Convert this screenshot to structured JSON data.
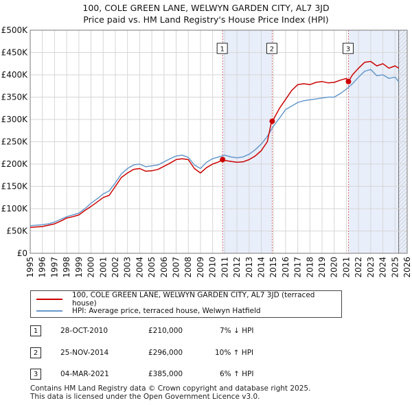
{
  "chart_data": {
    "type": "line",
    "title": "100, COLE GREEN LANE, WELWYN GARDEN CITY, AL7 3JD",
    "subtitle": "Price paid vs. HM Land Registry's House Price Index (HPI)",
    "xlabel": "",
    "ylabel": "",
    "xlim": [
      1995,
      2026
    ],
    "ylim": [
      0,
      500000
    ],
    "x_ticks": [
      "1995",
      "1996",
      "1997",
      "1998",
      "1999",
      "2000",
      "2001",
      "2002",
      "2003",
      "2004",
      "2005",
      "2006",
      "2007",
      "2008",
      "2009",
      "2010",
      "2011",
      "2012",
      "2013",
      "2014",
      "2015",
      "2016",
      "2017",
      "2018",
      "2019",
      "2020",
      "2021",
      "2022",
      "2023",
      "2024",
      "2025",
      "2026"
    ],
    "y_ticks": [
      {
        "value": 0,
        "label": "£0"
      },
      {
        "value": 50000,
        "label": "£50K"
      },
      {
        "value": 100000,
        "label": "£100K"
      },
      {
        "value": 150000,
        "label": "£150K"
      },
      {
        "value": 200000,
        "label": "£200K"
      },
      {
        "value": 250000,
        "label": "£250K"
      },
      {
        "value": 300000,
        "label": "£300K"
      },
      {
        "value": 350000,
        "label": "£350K"
      },
      {
        "value": 400000,
        "label": "£400K"
      },
      {
        "value": 450000,
        "label": "£450K"
      },
      {
        "value": 500000,
        "label": "£500K"
      }
    ],
    "grid": true,
    "series": [
      {
        "name": "100, COLE GREEN LANE, WELWYN GARDEN CITY, AL7 3JD (terraced house)",
        "color": "#cc0000",
        "x": [
          1995.0,
          1995.5,
          1996.0,
          1996.5,
          1997.0,
          1997.5,
          1998.0,
          1998.5,
          1999.0,
          1999.5,
          2000.0,
          2000.5,
          2001.0,
          2001.5,
          2002.0,
          2002.5,
          2003.0,
          2003.5,
          2004.0,
          2004.5,
          2005.0,
          2005.5,
          2006.0,
          2006.5,
          2007.0,
          2007.5,
          2008.0,
          2008.5,
          2009.0,
          2009.5,
          2010.0,
          2010.5,
          2010.82,
          2011.0,
          2011.5,
          2012.0,
          2012.5,
          2013.0,
          2013.5,
          2014.0,
          2014.5,
          2014.85,
          2014.9,
          2015.0,
          2015.5,
          2016.0,
          2016.5,
          2017.0,
          2017.5,
          2018.0,
          2018.5,
          2019.0,
          2019.5,
          2020.0,
          2020.5,
          2021.0,
          2021.17,
          2021.5,
          2022.0,
          2022.5,
          2023.0,
          2023.5,
          2024.0,
          2024.5,
          2025.0,
          2025.3
        ],
        "values": [
          58000,
          59000,
          60000,
          63000,
          66000,
          72000,
          79000,
          82000,
          86000,
          96000,
          105000,
          115000,
          125000,
          130000,
          150000,
          170000,
          180000,
          188000,
          190000,
          184000,
          185000,
          188000,
          195000,
          202000,
          210000,
          212000,
          210000,
          190000,
          180000,
          192000,
          200000,
          205000,
          210000,
          208000,
          206000,
          204000,
          205000,
          210000,
          218000,
          230000,
          250000,
          296000,
          296000,
          300000,
          325000,
          345000,
          365000,
          378000,
          380000,
          378000,
          383000,
          385000,
          382000,
          383000,
          388000,
          392000,
          385000,
          400000,
          415000,
          428000,
          430000,
          420000,
          425000,
          415000,
          420000,
          415000
        ]
      },
      {
        "name": "HPI: Average price, terraced house, Welwyn Hatfield",
        "color": "#6699cc",
        "x": [
          1995.0,
          1995.5,
          1996.0,
          1996.5,
          1997.0,
          1997.5,
          1998.0,
          1998.5,
          1999.0,
          1999.5,
          2000.0,
          2000.5,
          2001.0,
          2001.5,
          2002.0,
          2002.5,
          2003.0,
          2003.5,
          2004.0,
          2004.5,
          2005.0,
          2005.5,
          2006.0,
          2006.5,
          2007.0,
          2007.5,
          2008.0,
          2008.5,
          2009.0,
          2009.5,
          2010.0,
          2010.5,
          2011.0,
          2011.5,
          2012.0,
          2012.5,
          2013.0,
          2013.5,
          2014.0,
          2014.5,
          2015.0,
          2015.5,
          2016.0,
          2016.5,
          2017.0,
          2017.5,
          2018.0,
          2018.5,
          2019.0,
          2019.5,
          2020.0,
          2020.5,
          2021.0,
          2021.5,
          2022.0,
          2022.5,
          2023.0,
          2023.5,
          2024.0,
          2024.5,
          2025.0,
          2025.3
        ],
        "values": [
          62000,
          63000,
          64000,
          66000,
          70000,
          76000,
          82000,
          86000,
          90000,
          100000,
          112000,
          122000,
          133000,
          140000,
          158000,
          178000,
          190000,
          198000,
          200000,
          194000,
          196000,
          198000,
          205000,
          212000,
          218000,
          220000,
          215000,
          198000,
          190000,
          204000,
          212000,
          216000,
          220000,
          216000,
          214000,
          216000,
          222000,
          232000,
          245000,
          262000,
          285000,
          303000,
          322000,
          330000,
          338000,
          342000,
          344000,
          346000,
          348000,
          350000,
          350000,
          358000,
          368000,
          380000,
          395000,
          408000,
          412000,
          398000,
          400000,
          392000,
          395000,
          385000
        ]
      }
    ],
    "transactions": [
      {
        "label": "1",
        "year": 2010.82,
        "price": 210000
      },
      {
        "label": "2",
        "year": 2014.9,
        "price": 296000
      },
      {
        "label": "3",
        "year": 2021.17,
        "price": 385000
      }
    ],
    "highlight_ranges": [
      [
        2010.82,
        2014.9
      ],
      [
        2021.17,
        2026
      ]
    ],
    "legend_placement": "bottom"
  },
  "legend": [
    {
      "label": "100, COLE GREEN LANE, WELWYN GARDEN CITY, AL7 3JD (terraced house)",
      "color": "#cc0000"
    },
    {
      "label": "HPI: Average price, terraced house, Welwyn Hatfield",
      "color": "#6699cc"
    }
  ],
  "table": [
    {
      "num": "1",
      "date": "28-OCT-2010",
      "price": "£210,000",
      "hpi": "7% ↓ HPI"
    },
    {
      "num": "2",
      "date": "25-NOV-2014",
      "price": "£296,000",
      "hpi": "10% ↑ HPI"
    },
    {
      "num": "3",
      "date": "04-MAR-2021",
      "price": "£385,000",
      "hpi": "6% ↑ HPI"
    }
  ],
  "footer": {
    "line1": "Contains HM Land Registry data © Crown copyright and database right 2025.",
    "line2": "This data is licensed under the Open Government Licence v3.0."
  }
}
